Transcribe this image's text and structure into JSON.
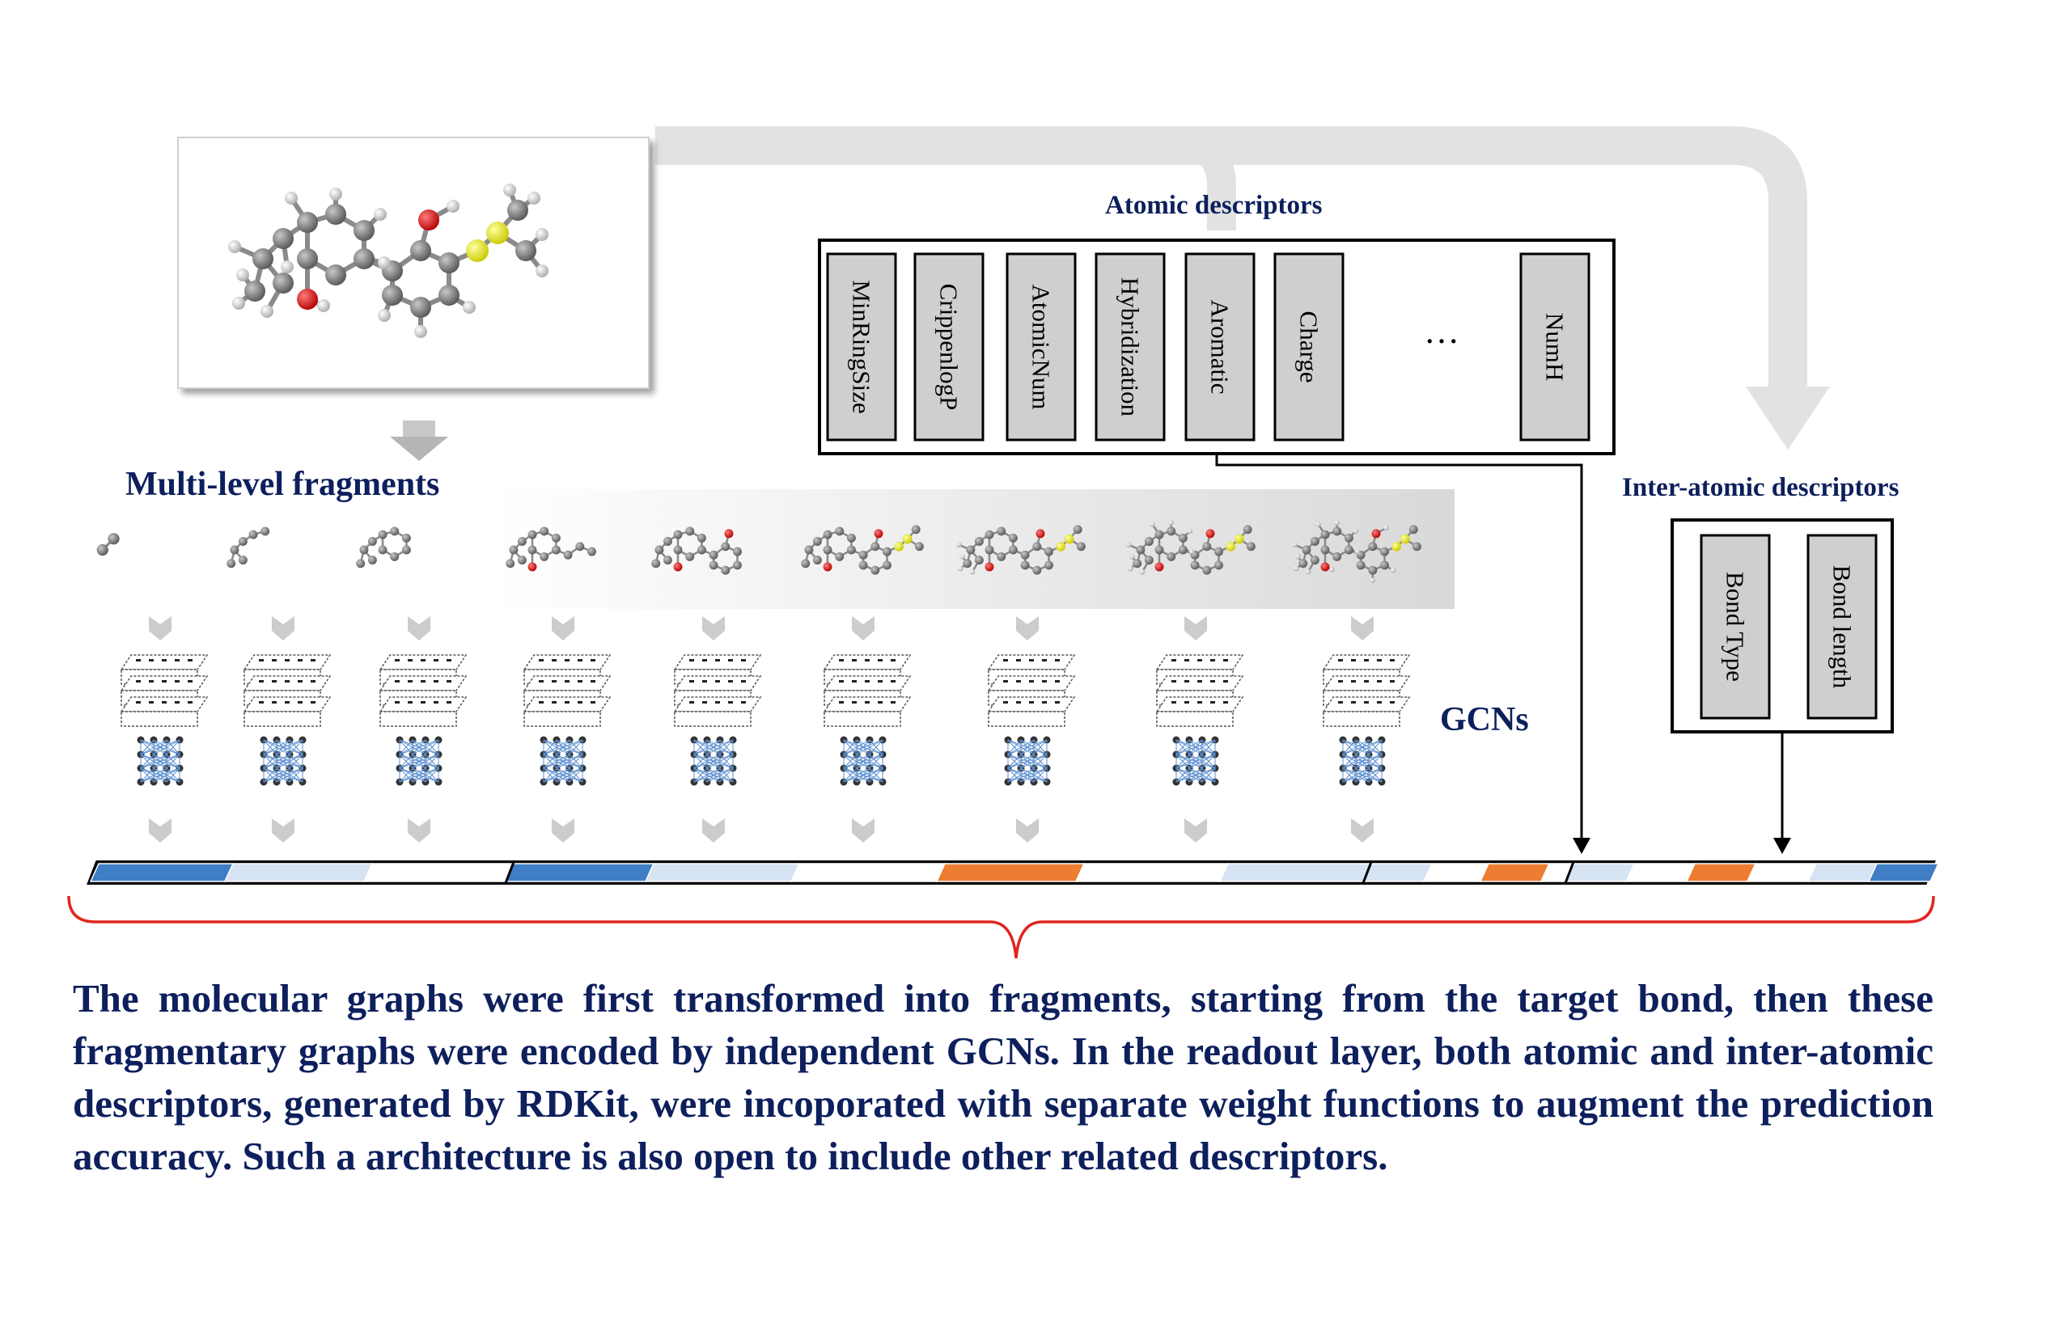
{
  "labels": {
    "multi_level": "Multi-level fragments",
    "atomic": "Atomic descriptors",
    "inter_atomic": "Inter-atomic descriptors",
    "gcns": "GCNs"
  },
  "atomic_descriptors": [
    "MinRingSize",
    "CrippenlogP",
    "AtomicNum",
    "Hybridization",
    "Aromatic",
    "Charge",
    "…",
    "NumH"
  ],
  "inter_atomic_descriptors": [
    "Bond Type",
    "Bond length"
  ],
  "caption": "The molecular graphs were first transformed into fragments, starting from the target bond, then these fragmentary graphs were encoded by independent GCNs. In the readout layer, both atomic and inter-atomic descriptors, generated by RDKit, were incoporated with separate weight functions to augment the prediction accuracy. Such a architecture is also open to include other related descriptors.",
  "colors": {
    "text": "#0d1f5c",
    "blue": "#3f7ec4",
    "light_blue": "#d6e3f3",
    "orange": "#ed7d31",
    "brace": "#e0261e",
    "flow_arrow": "#e2e2e2",
    "descriptor_fill": "#cfcfcf"
  }
}
